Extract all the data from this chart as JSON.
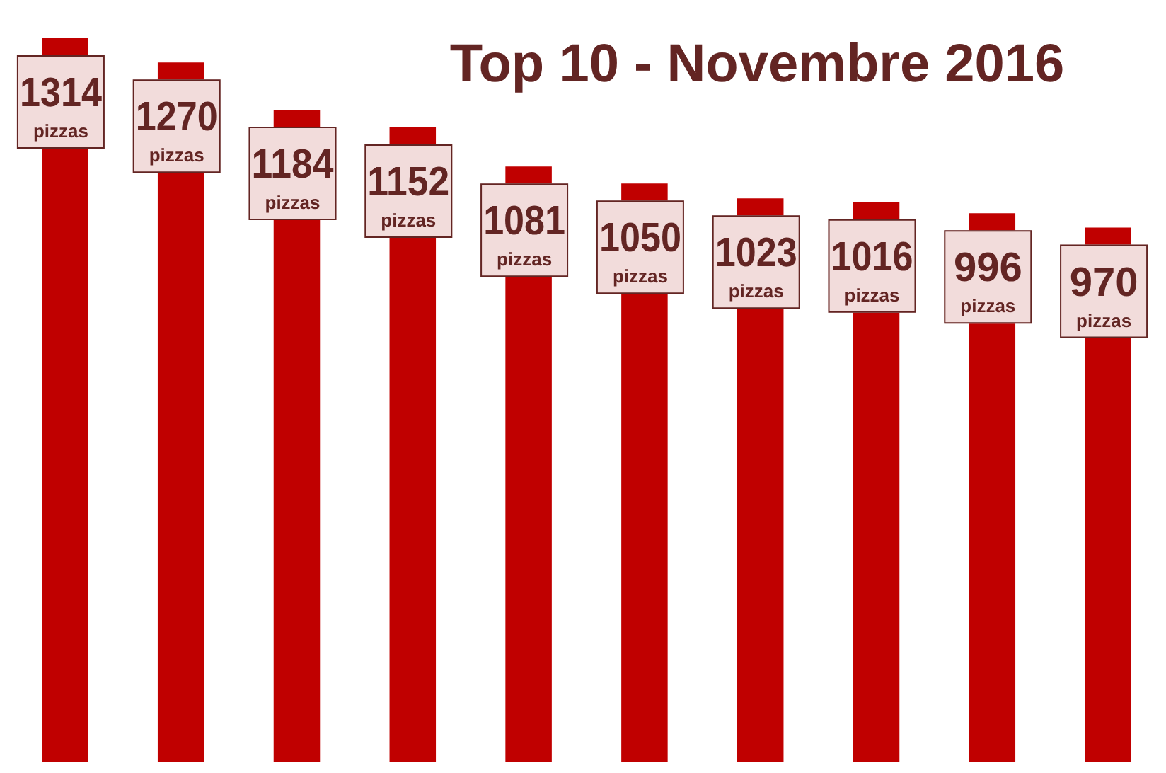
{
  "chart_data": {
    "type": "bar",
    "title": "Top 10 - Novembre 2016",
    "categories": [
      null,
      null,
      null,
      null,
      null,
      null,
      null,
      null,
      null,
      null
    ],
    "values": [
      1314,
      1270,
      1184,
      1152,
      1081,
      1050,
      1023,
      1016,
      996,
      970
    ],
    "value_labels": [
      "1314 pizzas",
      "1270 pizzas",
      "1184 pizzas",
      "1152 pizzas",
      "1081 pizzas",
      "1050 pizzas",
      "1023 pizzas",
      "1016 pizzas",
      "996 pizzas",
      "970 pizzas"
    ],
    "color": "#c00000"
  }
}
